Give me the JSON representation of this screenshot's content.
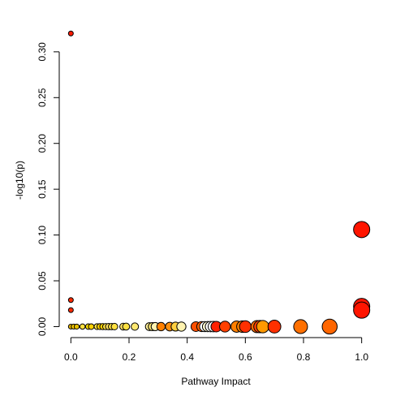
{
  "chart_data": {
    "type": "scatter",
    "title": "",
    "xlabel": "Pathway Impact",
    "ylabel": "-log10(p)",
    "xlim": [
      -0.04,
      1.04
    ],
    "ylim": [
      -0.012,
      0.33
    ],
    "xticks": [
      {
        "value": 0.0,
        "label": "0.0"
      },
      {
        "value": 0.2,
        "label": "0.2"
      },
      {
        "value": 0.4,
        "label": "0.4"
      },
      {
        "value": 0.6,
        "label": "0.6"
      },
      {
        "value": 0.8,
        "label": "0.8"
      },
      {
        "value": 1.0,
        "label": "1.0"
      }
    ],
    "yticks": [
      {
        "value": 0.0,
        "label": "0.00"
      },
      {
        "value": 0.05,
        "label": "0.05"
      },
      {
        "value": 0.1,
        "label": "0.10"
      },
      {
        "value": 0.15,
        "label": "0.15"
      },
      {
        "value": 0.2,
        "label": "0.20"
      },
      {
        "value": 0.25,
        "label": "0.25"
      },
      {
        "value": 0.3,
        "label": "0.30"
      }
    ],
    "grid": false,
    "legend": "none",
    "size_encodes": "Pathway Impact",
    "color_encodes": "-log10(p)",
    "points": [
      {
        "x": 0.0,
        "y": 0.32,
        "color": "#ff1a00"
      },
      {
        "x": 0.0,
        "y": 0.029,
        "color": "#ff2a00"
      },
      {
        "x": 0.0,
        "y": 0.018,
        "color": "#ff2a00"
      },
      {
        "x": 0.0,
        "y": 0.0,
        "color": "#e0b000"
      },
      {
        "x": 0.01,
        "y": 0.0,
        "color": "#ffd000"
      },
      {
        "x": 0.02,
        "y": 0.0,
        "color": "#e8c000"
      },
      {
        "x": 0.04,
        "y": 0.0,
        "color": "#ffe040"
      },
      {
        "x": 0.06,
        "y": 0.0,
        "color": "#ffe000"
      },
      {
        "x": 0.07,
        "y": 0.0,
        "color": "#ffd000"
      },
      {
        "x": 0.09,
        "y": 0.0,
        "color": "#ffe040"
      },
      {
        "x": 0.1,
        "y": 0.0,
        "color": "#ffd000"
      },
      {
        "x": 0.11,
        "y": 0.0,
        "color": "#ffd000"
      },
      {
        "x": 0.12,
        "y": 0.0,
        "color": "#ffe040"
      },
      {
        "x": 0.13,
        "y": 0.0,
        "color": "#ffe060"
      },
      {
        "x": 0.14,
        "y": 0.0,
        "color": "#ffe040"
      },
      {
        "x": 0.15,
        "y": 0.0,
        "color": "#ffe040"
      },
      {
        "x": 0.18,
        "y": 0.0,
        "color": "#ffe060"
      },
      {
        "x": 0.19,
        "y": 0.0,
        "color": "#ffe040"
      },
      {
        "x": 0.22,
        "y": 0.0,
        "color": "#ffe870"
      },
      {
        "x": 0.27,
        "y": 0.0,
        "color": "#fff09a"
      },
      {
        "x": 0.28,
        "y": 0.0,
        "color": "#ffe870"
      },
      {
        "x": 0.29,
        "y": 0.0,
        "color": "#fff3b0"
      },
      {
        "x": 0.31,
        "y": 0.0,
        "color": "#ff8000"
      },
      {
        "x": 0.34,
        "y": 0.0,
        "color": "#ff9010"
      },
      {
        "x": 0.36,
        "y": 0.0,
        "color": "#ffd040"
      },
      {
        "x": 0.38,
        "y": 0.0,
        "color": "#fff3b0"
      },
      {
        "x": 0.43,
        "y": 0.0,
        "color": "#ff5000"
      },
      {
        "x": 0.45,
        "y": 0.0,
        "color": "#ff6000"
      },
      {
        "x": 0.46,
        "y": 0.0,
        "color": "#ffffff"
      },
      {
        "x": 0.47,
        "y": 0.0,
        "color": "#fff8d0"
      },
      {
        "x": 0.48,
        "y": 0.0,
        "color": "#ffffff"
      },
      {
        "x": 0.49,
        "y": 0.0,
        "color": "#ffffff"
      },
      {
        "x": 0.5,
        "y": 0.0,
        "color": "#ff2000"
      },
      {
        "x": 0.53,
        "y": 0.0,
        "color": "#ff4000"
      },
      {
        "x": 0.57,
        "y": 0.0,
        "color": "#ff8000"
      },
      {
        "x": 0.59,
        "y": 0.0,
        "color": "#ff8000"
      },
      {
        "x": 0.6,
        "y": 0.0,
        "color": "#ff3000"
      },
      {
        "x": 0.64,
        "y": 0.0,
        "color": "#ff7000"
      },
      {
        "x": 0.65,
        "y": 0.0,
        "color": "#ff4000"
      },
      {
        "x": 0.66,
        "y": 0.0,
        "color": "#ff9900"
      },
      {
        "x": 0.7,
        "y": 0.0,
        "color": "#ff3000"
      },
      {
        "x": 0.79,
        "y": 0.0,
        "color": "#ff7000"
      },
      {
        "x": 0.89,
        "y": 0.0,
        "color": "#ff6600"
      },
      {
        "x": 1.0,
        "y": 0.106,
        "color": "#ff1500"
      },
      {
        "x": 1.0,
        "y": 0.022,
        "color": "#ff1500"
      },
      {
        "x": 1.0,
        "y": 0.018,
        "color": "#ff1500"
      }
    ]
  }
}
